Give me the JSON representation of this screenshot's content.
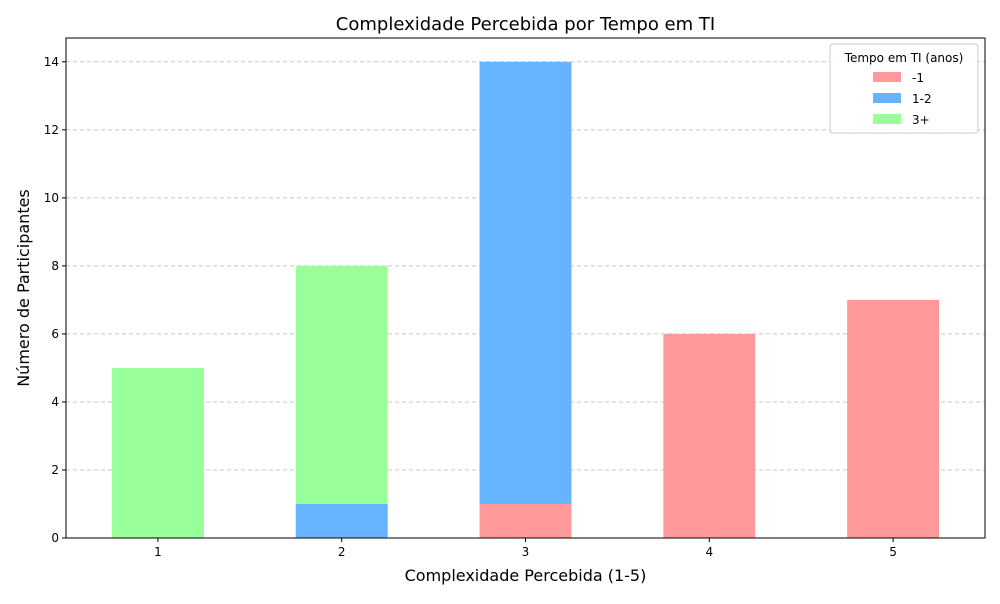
{
  "chart_data": {
    "type": "bar",
    "stacked": true,
    "title": "Complexidade Percebida por Tempo em TI",
    "xlabel": "Complexidade Percebida (1-5)",
    "ylabel": "Número de Participantes",
    "categories": [
      "1",
      "2",
      "3",
      "4",
      "5"
    ],
    "ylim": [
      0,
      14.7
    ],
    "yticks": [
      0,
      2,
      4,
      6,
      8,
      10,
      12,
      14
    ],
    "grid": "y-dashed",
    "legend": {
      "title": "Tempo em TI (anos)",
      "position": "top-right"
    },
    "series": [
      {
        "name": "-1",
        "color": "#ff9999",
        "values": [
          0,
          0,
          1,
          6,
          7
        ]
      },
      {
        "name": "1-2",
        "color": "#66b3ff",
        "values": [
          0,
          1,
          13,
          0,
          0
        ]
      },
      {
        "name": "3+",
        "color": "#99ff99",
        "values": [
          5,
          7,
          0,
          0,
          0
        ]
      }
    ]
  }
}
